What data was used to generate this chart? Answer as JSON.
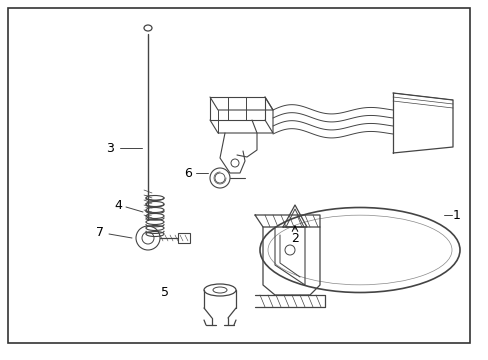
{
  "background_color": "#ffffff",
  "line_color": "#444444",
  "text_color": "#000000",
  "fig_width": 4.89,
  "fig_height": 3.6,
  "dpi": 100
}
